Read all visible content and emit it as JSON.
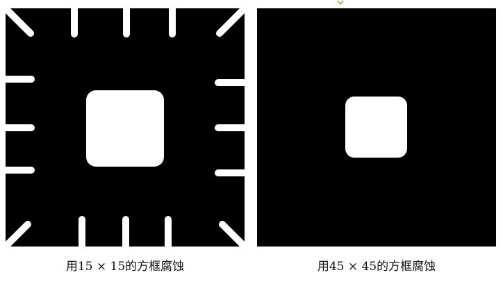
{
  "figures": [
    {
      "caption": "用15 × 15的方框腐蚀",
      "style": {
        "background": "#000000",
        "foreground": "#ffffff"
      }
    },
    {
      "caption": "用45 × 45的方框腐蚀",
      "style": {
        "background": "#000000",
        "foreground": "#ffffff"
      }
    }
  ],
  "decorations": {
    "stray_mark_color": "#8a9a2a"
  }
}
